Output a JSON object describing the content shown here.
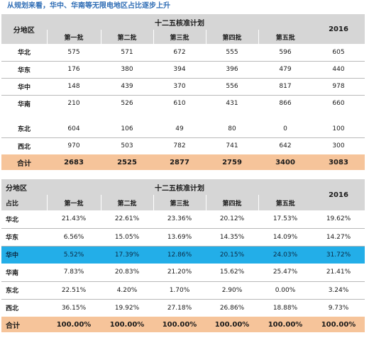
{
  "title": "从规划来看，华中、华南等无限电地区占比逐步上升",
  "table1": {
    "region_header": "分地区",
    "group_header": "十二五核准计划",
    "year_header": "2016",
    "batches": [
      "第一批",
      "第二批",
      "第三批",
      "第四批",
      "第五批"
    ],
    "rows": [
      {
        "label": "华北",
        "values": [
          "575",
          "571",
          "672",
          "555",
          "596",
          "605"
        ]
      },
      {
        "label": "华东",
        "values": [
          "176",
          "380",
          "394",
          "396",
          "479",
          "440"
        ]
      },
      {
        "label": "华中",
        "values": [
          "148",
          "439",
          "370",
          "556",
          "817",
          "978"
        ]
      },
      {
        "label": "华南",
        "values": [
          "210",
          "526",
          "610",
          "431",
          "866",
          "660"
        ]
      },
      {
        "label": "东北",
        "values": [
          "604",
          "106",
          "49",
          "80",
          "0",
          "100"
        ]
      },
      {
        "label": "西北",
        "values": [
          "970",
          "503",
          "782",
          "741",
          "642",
          "300"
        ]
      }
    ],
    "total": {
      "label": "合计",
      "values": [
        "2683",
        "2525",
        "2877",
        "2759",
        "3400",
        "3083"
      ]
    }
  },
  "table2": {
    "region_header_line1": "分地区",
    "region_header_line2": "占比",
    "group_header": "十二五核准计划",
    "year_header": "2016",
    "batches": [
      "第一批",
      "第二批",
      "第三批",
      "第四批",
      "第五批"
    ],
    "rows": [
      {
        "label": "华北",
        "values": [
          "21.43%",
          "22.61%",
          "23.36%",
          "20.12%",
          "17.53%",
          "19.62%"
        ]
      },
      {
        "label": "华东",
        "values": [
          "6.56%",
          "15.05%",
          "13.69%",
          "14.35%",
          "14.09%",
          "14.27%"
        ]
      },
      {
        "label": "华中",
        "values": [
          "5.52%",
          "17.39%",
          "12.86%",
          "20.15%",
          "24.03%",
          "31.72%"
        ]
      },
      {
        "label": "华南",
        "values": [
          "7.83%",
          "20.83%",
          "21.20%",
          "15.62%",
          "25.47%",
          "21.41%"
        ]
      },
      {
        "label": "东北",
        "values": [
          "22.51%",
          "4.20%",
          "1.70%",
          "2.90%",
          "0.00%",
          "3.24%"
        ]
      },
      {
        "label": "西北",
        "values": [
          "36.15%",
          "19.92%",
          "27.18%",
          "26.86%",
          "18.88%",
          "9.73%"
        ]
      }
    ],
    "total": {
      "label": "合计",
      "values": [
        "100.00%",
        "100.00%",
        "100.00%",
        "100.00%",
        "100.00%",
        "100.00%"
      ]
    }
  },
  "colors": {
    "header_gray": "#d6d6d6",
    "total_orange": "#f6c49a",
    "highlight_blue": "#23aee8",
    "title_blue": "#2f6db5"
  }
}
